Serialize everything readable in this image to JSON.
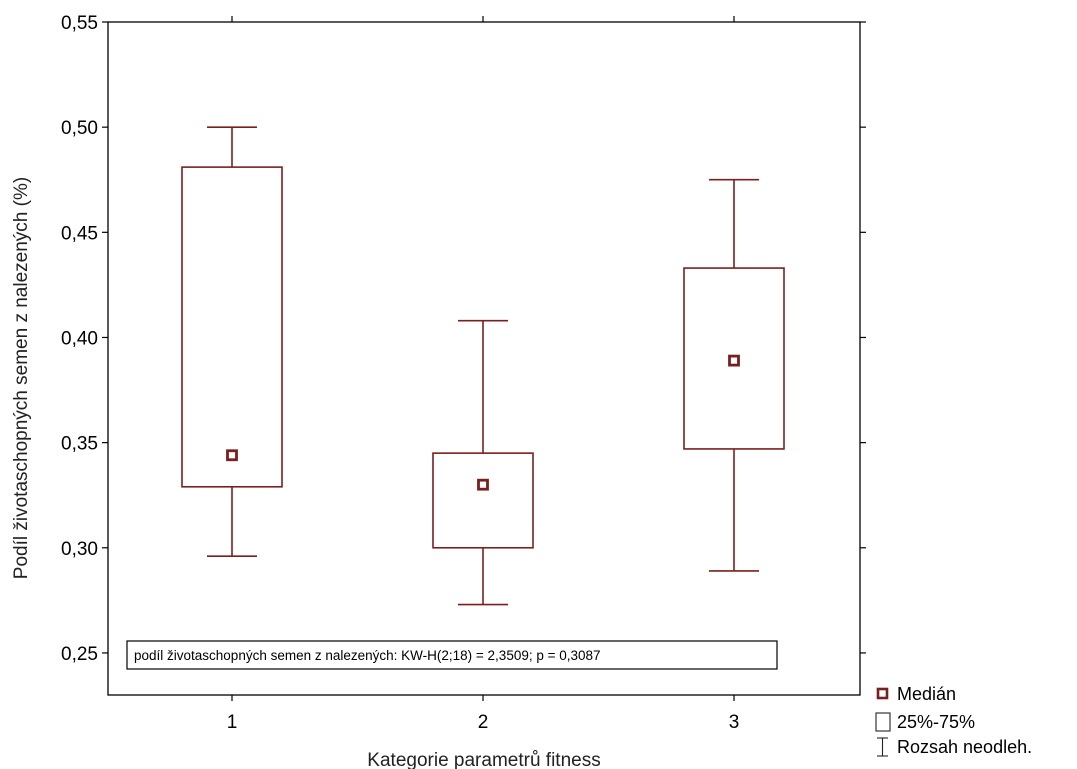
{
  "chart_data": {
    "type": "boxplot",
    "title": "",
    "xlabel": "Kategorie parametrů fitness",
    "ylabel": "Podíl životaschopných semen z nalezených (%)",
    "categories": [
      "1",
      "2",
      "3"
    ],
    "ylim": [
      0.23,
      0.55
    ],
    "yticks": [
      {
        "value": 0.25,
        "label": "0,25"
      },
      {
        "value": 0.3,
        "label": "0,30"
      },
      {
        "value": 0.35,
        "label": "0,35"
      },
      {
        "value": 0.4,
        "label": "0,40"
      },
      {
        "value": 0.45,
        "label": "0,45"
      },
      {
        "value": 0.5,
        "label": "0,50"
      },
      {
        "value": 0.55,
        "label": "0,55"
      }
    ],
    "boxes": [
      {
        "category": "1",
        "min": 0.296,
        "q1": 0.329,
        "median": 0.344,
        "q3": 0.481,
        "max": 0.5
      },
      {
        "category": "2",
        "min": 0.273,
        "q1": 0.3,
        "median": 0.33,
        "q3": 0.345,
        "max": 0.408
      },
      {
        "category": "3",
        "min": 0.289,
        "q1": 0.347,
        "median": 0.389,
        "q3": 0.433,
        "max": 0.475
      }
    ],
    "annotation": "podíl životaschopných semen z nalezených: KW-H(2;18) = 2,3509; p = 0,3087",
    "legend": {
      "position": "bottom-right",
      "items": [
        {
          "symbol": "median-square",
          "label": "Medián"
        },
        {
          "symbol": "box",
          "label": "25%-75%"
        },
        {
          "symbol": "whisker",
          "label": "Rozsah neodleh."
        }
      ]
    },
    "grid": false,
    "colors": {
      "series": "#7a1f1f",
      "axis": "#000000"
    }
  }
}
